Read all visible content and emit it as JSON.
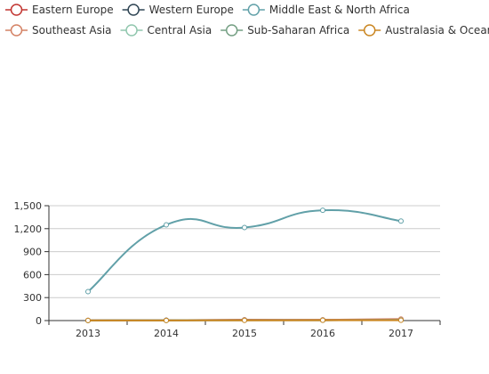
{
  "chart_data": {
    "type": "line",
    "title": "",
    "xlabel": "",
    "ylabel": "",
    "x": [
      "2013",
      "2014",
      "2015",
      "2016",
      "2017"
    ],
    "ylim": [
      0,
      1500
    ],
    "yticks": [
      0,
      300,
      600,
      900,
      1200,
      1500
    ],
    "ytick_labels": [
      "0",
      "300",
      "600",
      "900",
      "1,200",
      "1,500"
    ],
    "grid": true,
    "smooth": true,
    "legend_position": "top",
    "series": [
      {
        "name": "Eastern Europe",
        "color": "#c23531",
        "values": [
          3,
          5,
          10,
          8,
          12
        ]
      },
      {
        "name": "Western Europe",
        "color": "#2f4554",
        "values": [
          2,
          4,
          6,
          5,
          7
        ]
      },
      {
        "name": "Middle East & North Africa",
        "color": "#61a0a8",
        "values": [
          378,
          1250,
          1215,
          1440,
          1300
        ]
      },
      {
        "name": "Southeast Asia",
        "color": "#d48265",
        "values": [
          1,
          3,
          8,
          10,
          20
        ]
      },
      {
        "name": "Central Asia",
        "color": "#91c7ae",
        "values": [
          1,
          2,
          4,
          5,
          6
        ]
      },
      {
        "name": "Sub-Saharan Africa",
        "color": "#749f83",
        "values": [
          2,
          3,
          5,
          6,
          8
        ]
      },
      {
        "name": "Australasia & Oceania",
        "color": "#ca8622",
        "values": [
          1,
          2,
          3,
          4,
          5
        ]
      }
    ]
  }
}
